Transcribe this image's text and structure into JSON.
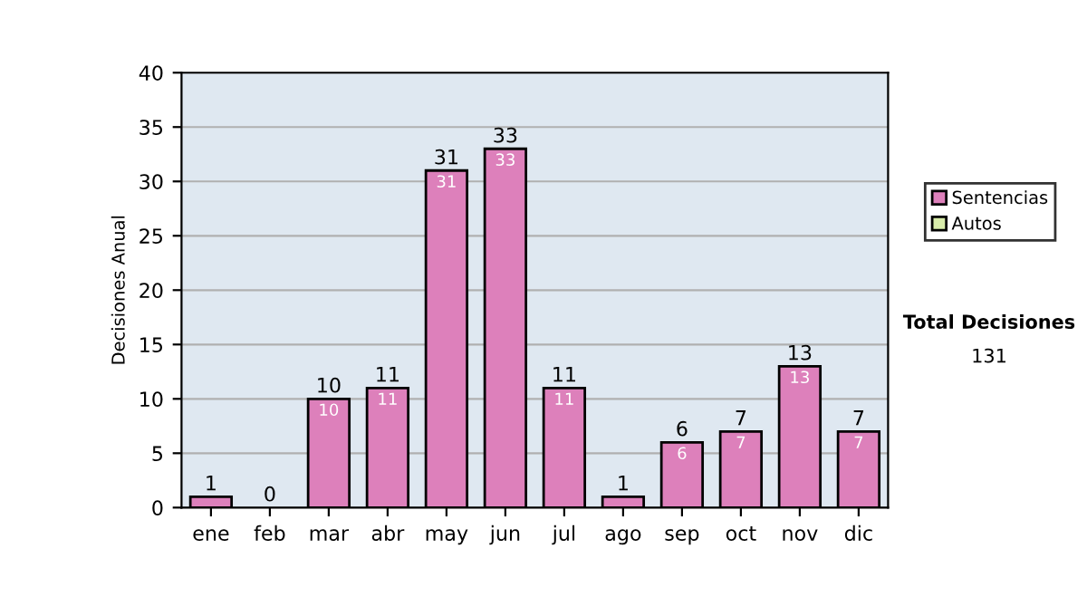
{
  "chart_data": {
    "type": "bar",
    "ylabel": "Decisiones Anual",
    "categories": [
      "ene",
      "feb",
      "mar",
      "abr",
      "may",
      "jun",
      "jul",
      "ago",
      "sep",
      "oct",
      "nov",
      "dic"
    ],
    "series": [
      {
        "name": "Sentencias",
        "color": "#dd80bb",
        "values": [
          1,
          0,
          10,
          11,
          31,
          33,
          11,
          1,
          6,
          7,
          13,
          7
        ],
        "value_labels": [
          null,
          null,
          "10",
          "11",
          "31",
          "33",
          "11",
          null,
          "6",
          "7",
          "13",
          "7"
        ]
      },
      {
        "name": "Autos",
        "color": "#d8ecaa",
        "values": [
          0,
          0,
          0,
          0,
          0,
          0,
          0,
          0,
          0,
          0,
          0,
          0
        ]
      }
    ],
    "stacked": true,
    "totals": [
      "1",
      "0",
      "10",
      "11",
      "31",
      "33",
      "11",
      "1",
      "6",
      "7",
      "13",
      "7"
    ],
    "ylim": [
      0,
      40
    ],
    "yticks": [
      0,
      5,
      10,
      15,
      20,
      25,
      30,
      35,
      40
    ],
    "grid": "y",
    "legend": "right",
    "annotations": [
      "Total Decisiones",
      "131"
    ]
  }
}
